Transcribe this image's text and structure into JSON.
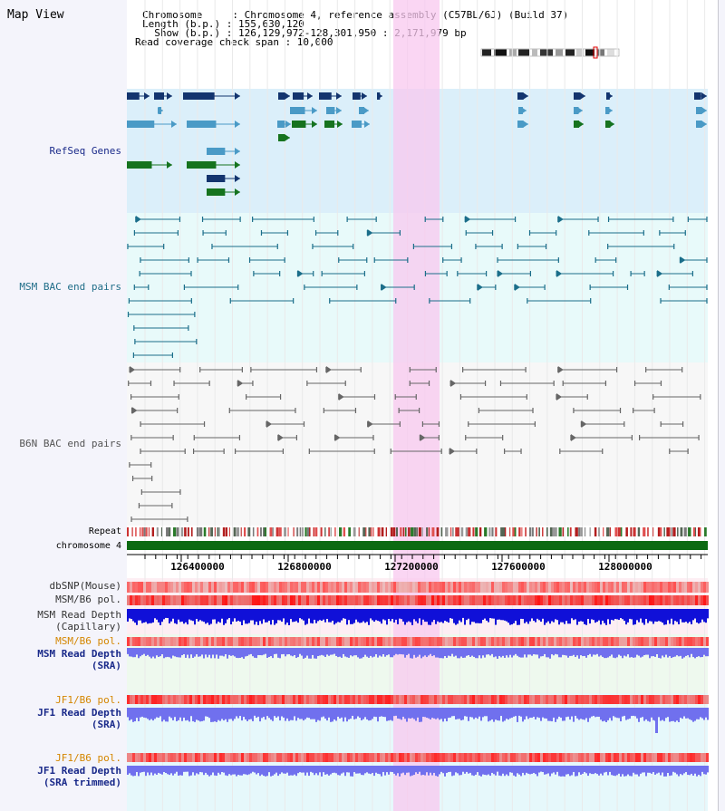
{
  "map": {
    "title": "Map View",
    "chromosome_line": "Chromosome     : Chromosome 4, reference assembly (C57BL/6J) (Build 37)",
    "length_line": "Length (b.p.) : 155,630,120",
    "show_line": "  Show (b.p.) : 126,129,972-128,301,950 : 2,171,979 bp",
    "coverage_line": "Read coverage check span : 10,000"
  },
  "tracks": {
    "refseq": "RefSeq Genes",
    "msm_bac": "MSM BAC end pairs",
    "b6n_bac": "B6N BAC end pairs",
    "repeat": "Repeat",
    "chromosome": "chromosome 4",
    "dbsnp": "dbSNP(Mouse)",
    "msm_b6_pol": "MSM/B6 pol.",
    "msm_read_depth": "MSM Read Depth",
    "capillary": "(Capillary)",
    "msm_b6_pol_sra": "MSM/B6 pol.",
    "msm_read_depth_sra": "MSM Read Depth",
    "sra": "(SRA)",
    "jf1_b6_pol": "JF1/B6 pol.",
    "jf1_read_depth": "JF1 Read Depth",
    "sra2": "(SRA)",
    "jf1_b6_pol2": "JF1/B6 pol.",
    "jf1_read_depth2": "JF1 Read Depth",
    "sra_trimmed": "(SRA trimmed)"
  },
  "axis": {
    "ticks": [
      "126400000",
      "126800000",
      "127200000",
      "127600000",
      "128000000"
    ]
  },
  "colors": {
    "highlight": "#f8c8ef",
    "refseq_bg": "#dbeffa",
    "msm_bg": "#e8fafa",
    "b6n_bg": "#f7f7f7",
    "gene_dark": "#13346e",
    "gene_mid": "#4a9ac6",
    "gene_green": "#16731e",
    "msm_line": "#1b6e8a",
    "b6n_line": "#666666",
    "label_blue": "#1a2a8a",
    "label_teal": "#1f6d88",
    "label_gray": "#555555",
    "label_orange": "#d48600",
    "depth_blue": "#1010d8",
    "depth_light": "#7070ee"
  }
}
